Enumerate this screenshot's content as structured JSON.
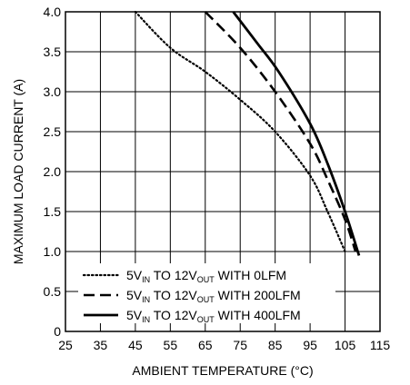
{
  "chart_data": {
    "type": "line",
    "title": "",
    "xlabel": "AMBIENT TEMPERATURE (°C)",
    "ylabel": "MAXIMUM LOAD CURRENT (A)",
    "xlim": [
      25,
      115
    ],
    "ylim": [
      0,
      4.0
    ],
    "x_ticks": [
      25,
      35,
      45,
      55,
      65,
      75,
      85,
      95,
      105,
      115
    ],
    "y_ticks": [
      0,
      0.5,
      1.0,
      1.5,
      2.0,
      2.5,
      3.0,
      3.5,
      4.0
    ],
    "x_tick_labels": [
      "25",
      "35",
      "45",
      "55",
      "65",
      "75",
      "85",
      "95",
      "105",
      "115"
    ],
    "y_tick_labels": [
      "0",
      "0.5",
      "1.0",
      "1.5",
      "2.0",
      "2.5",
      "3.0",
      "3.5",
      "4.0"
    ],
    "grid": true,
    "legend_position": "bottom-left",
    "series": [
      {
        "legend": {
          "pre": "5V",
          "sub1": "IN",
          "mid": " TO 12V",
          "sub2": "OUT",
          "post": " WITH 0LFM"
        },
        "style": "dotted",
        "points": [
          [
            45,
            4.0
          ],
          [
            55,
            3.55
          ],
          [
            65,
            3.25
          ],
          [
            75,
            2.9
          ],
          [
            85,
            2.5
          ],
          [
            95,
            1.95
          ],
          [
            100,
            1.5
          ],
          [
            105,
            1.0
          ]
        ]
      },
      {
        "legend": {
          "pre": "5V",
          "sub1": "IN",
          "mid": " TO 12V",
          "sub2": "OUT",
          "post": " WITH 200LFM"
        },
        "style": "dashed",
        "points": [
          [
            65,
            4.0
          ],
          [
            75,
            3.55
          ],
          [
            85,
            3.0
          ],
          [
            95,
            2.35
          ],
          [
            100,
            1.9
          ],
          [
            105,
            1.4
          ],
          [
            108,
            1.0
          ]
        ]
      },
      {
        "legend": {
          "pre": "5V",
          "sub1": "IN",
          "mid": " TO 12V",
          "sub2": "OUT",
          "post": " WITH 400LFM"
        },
        "style": "solid",
        "points": [
          [
            73,
            4.0
          ],
          [
            80,
            3.6
          ],
          [
            86,
            3.25
          ],
          [
            95,
            2.6
          ],
          [
            100,
            2.1
          ],
          [
            105,
            1.5
          ],
          [
            109,
            0.95
          ]
        ]
      }
    ]
  }
}
